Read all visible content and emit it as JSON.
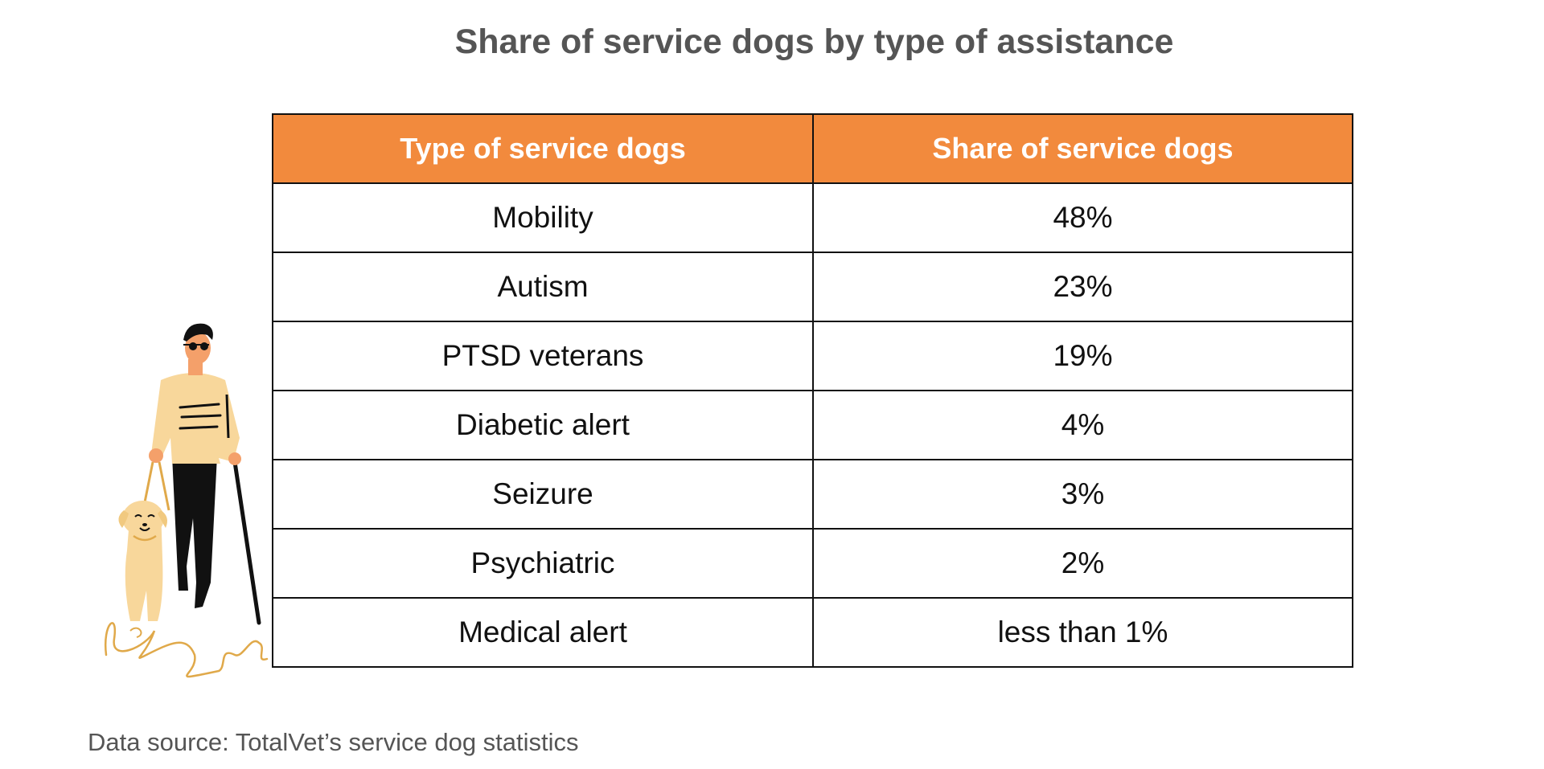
{
  "title": "Share of service dogs by type of assistance",
  "colors": {
    "header_bg": "#f28a3d",
    "header_text": "#ffffff",
    "border": "#111111",
    "title": "#555555"
  },
  "chart_data": {
    "type": "table",
    "title": "Share of service dogs by type of assistance",
    "columns": [
      "Type of service dogs",
      "Share of service dogs"
    ],
    "rows": [
      [
        "Mobility",
        "48%"
      ],
      [
        "Autism",
        "23%"
      ],
      [
        "PTSD veterans",
        "19%"
      ],
      [
        "Diabetic alert",
        "4%"
      ],
      [
        "Seizure",
        "3%"
      ],
      [
        "Psychiatric",
        "2%"
      ],
      [
        "Medical alert",
        "less than 1%"
      ]
    ]
  },
  "source": "Data source: TotalVet’s service dog statistics",
  "illustration": {
    "icon": "person-with-guide-dog-icon"
  }
}
